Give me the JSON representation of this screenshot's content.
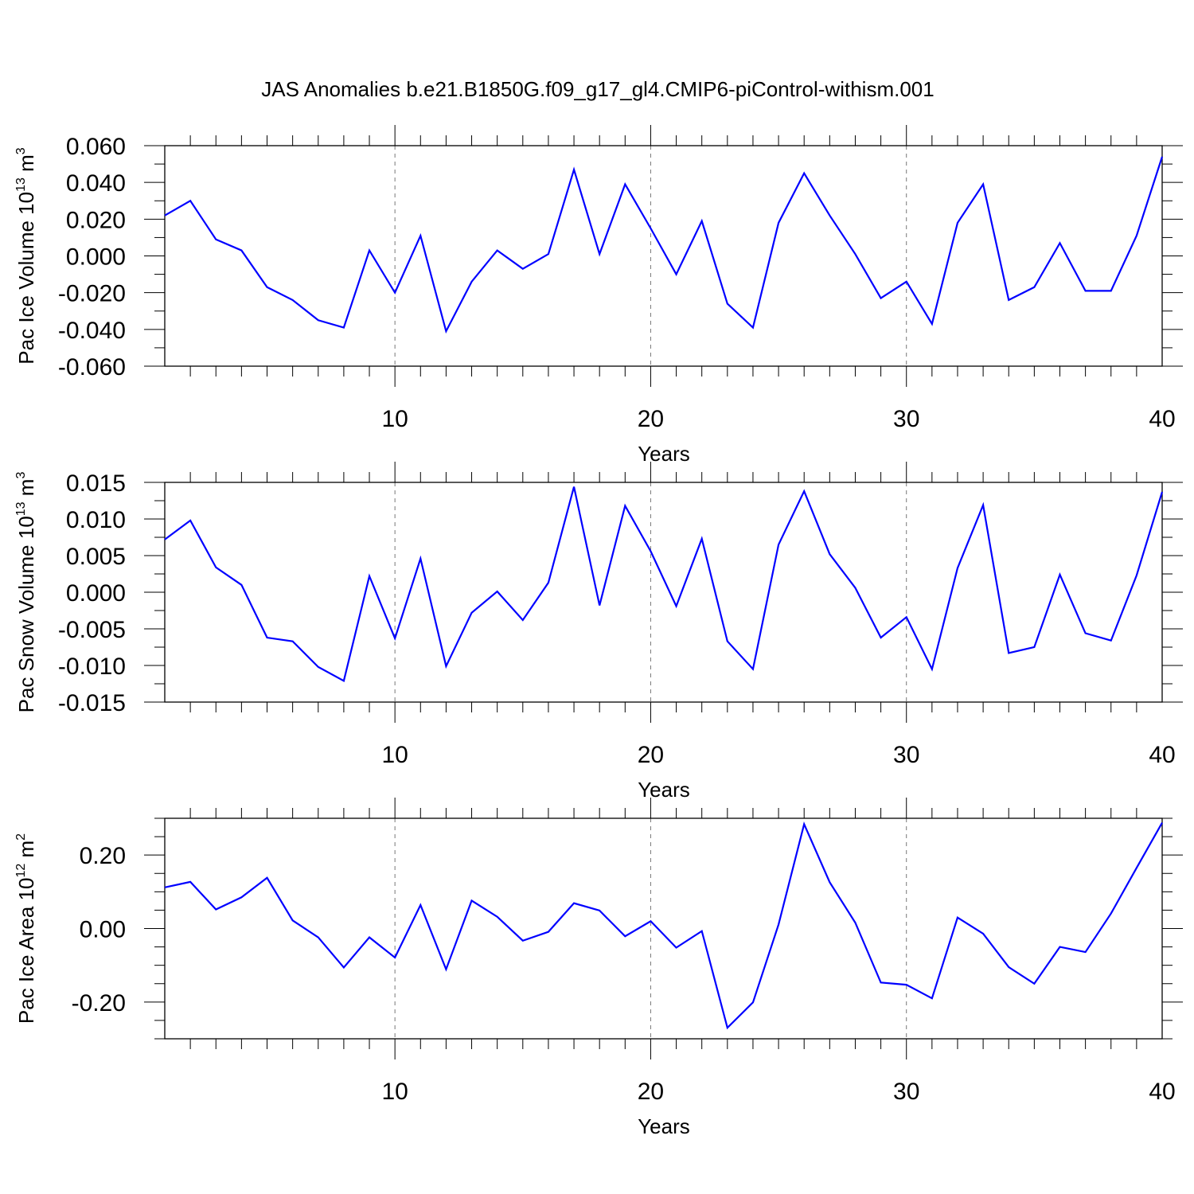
{
  "title": "JAS Anomalies b.e21.B1850G.f09_g17_gl4.CMIP6-piControl-withism.001",
  "chart_data": [
    {
      "type": "line",
      "xlabel": "Years",
      "ylabel": {
        "prefix": "Pac Ice Volume 10",
        "exponent": "13",
        "unit": " m",
        "unit_exponent": "3"
      },
      "xlim": [
        1,
        40
      ],
      "ylim": [
        -0.06,
        0.06
      ],
      "xticks": [
        10,
        20,
        30,
        40
      ],
      "yticks": [
        -0.06,
        -0.04,
        -0.02,
        0.0,
        0.02,
        0.04,
        0.06
      ],
      "ytick_labels": [
        "-0.060",
        "-0.040",
        "-0.020",
        "0.000",
        "0.020",
        "0.040",
        "0.060"
      ],
      "grid": "vertical dashed at major x ticks",
      "color": "#0000ff",
      "x": [
        1,
        2,
        3,
        4,
        5,
        6,
        7,
        8,
        9,
        10,
        11,
        12,
        13,
        14,
        15,
        16,
        17,
        18,
        19,
        20,
        21,
        22,
        23,
        24,
        25,
        26,
        27,
        28,
        29,
        30,
        31,
        32,
        33,
        34,
        35,
        36,
        37,
        38,
        39,
        40
      ],
      "values": [
        0.022,
        0.03,
        0.009,
        0.003,
        -0.017,
        -0.024,
        -0.035,
        -0.039,
        0.003,
        -0.02,
        0.011,
        -0.041,
        -0.014,
        0.003,
        -0.007,
        0.001,
        0.047,
        0.001,
        0.039,
        0.015,
        -0.01,
        0.019,
        -0.026,
        -0.039,
        0.018,
        0.045,
        0.022,
        0.001,
        -0.023,
        -0.014,
        -0.037,
        0.018,
        0.039,
        -0.024,
        -0.017,
        0.007,
        -0.019,
        -0.019,
        0.011,
        0.054
      ]
    },
    {
      "type": "line",
      "xlabel": "Years",
      "ylabel": {
        "prefix": "Pac Snow Volume 10",
        "exponent": "13",
        "unit": " m",
        "unit_exponent": "3"
      },
      "xlim": [
        1,
        40
      ],
      "ylim": [
        -0.015,
        0.015
      ],
      "xticks": [
        10,
        20,
        30,
        40
      ],
      "yticks": [
        -0.015,
        -0.01,
        -0.005,
        0.0,
        0.005,
        0.01,
        0.015
      ],
      "ytick_labels": [
        "-0.015",
        "-0.010",
        "-0.005",
        "0.000",
        "0.005",
        "0.010",
        "0.015"
      ],
      "grid": "vertical dashed at major x ticks",
      "color": "#0000ff",
      "x": [
        1,
        2,
        3,
        4,
        5,
        6,
        7,
        8,
        9,
        10,
        11,
        12,
        13,
        14,
        15,
        16,
        17,
        18,
        19,
        20,
        21,
        22,
        23,
        24,
        25,
        26,
        27,
        28,
        29,
        30,
        31,
        32,
        33,
        34,
        35,
        36,
        37,
        38,
        39,
        40
      ],
      "values": [
        0.0072,
        0.0098,
        0.0034,
        0.001,
        -0.0062,
        -0.0067,
        -0.0102,
        -0.0121,
        0.0022,
        -0.0063,
        0.0046,
        -0.0101,
        -0.0028,
        0.0001,
        -0.0038,
        0.0013,
        0.0144,
        -0.0018,
        0.0118,
        0.0056,
        -0.0019,
        0.0073,
        -0.0067,
        -0.0105,
        0.0065,
        0.0138,
        0.0052,
        0.0006,
        -0.0062,
        -0.0034,
        -0.0105,
        0.0033,
        0.0119,
        -0.0083,
        -0.0075,
        0.0024,
        -0.0056,
        -0.0066,
        0.0023,
        0.0137
      ]
    },
    {
      "type": "line",
      "xlabel": "Years",
      "ylabel": {
        "prefix": "Pac Ice Area 10",
        "exponent": "12",
        "unit": " m",
        "unit_exponent": "2"
      },
      "xlim": [
        1,
        40
      ],
      "ylim": [
        -0.3,
        0.3
      ],
      "xticks": [
        10,
        20,
        30,
        40
      ],
      "yticks": [
        -0.2,
        0.0,
        0.2
      ],
      "ytick_labels": [
        "-0.20",
        "0.00",
        "0.20"
      ],
      "yminor_step": 0.05,
      "grid": "vertical dashed at major x ticks",
      "color": "#0000ff",
      "x": [
        1,
        2,
        3,
        4,
        5,
        6,
        7,
        8,
        9,
        10,
        11,
        12,
        13,
        14,
        15,
        16,
        17,
        18,
        19,
        20,
        21,
        22,
        23,
        24,
        25,
        26,
        27,
        28,
        29,
        30,
        31,
        32,
        33,
        34,
        35,
        36,
        37,
        38,
        39,
        40
      ],
      "values": [
        0.112,
        0.127,
        0.052,
        0.085,
        0.138,
        0.022,
        -0.024,
        -0.106,
        -0.024,
        -0.079,
        0.064,
        -0.111,
        0.076,
        0.032,
        -0.033,
        -0.009,
        0.069,
        0.049,
        -0.021,
        0.02,
        -0.052,
        -0.007,
        -0.27,
        -0.201,
        0.011,
        0.284,
        0.126,
        0.016,
        -0.147,
        -0.153,
        -0.19,
        0.03,
        -0.014,
        -0.105,
        -0.15,
        -0.05,
        -0.064,
        0.041,
        0.165,
        0.288
      ]
    }
  ]
}
